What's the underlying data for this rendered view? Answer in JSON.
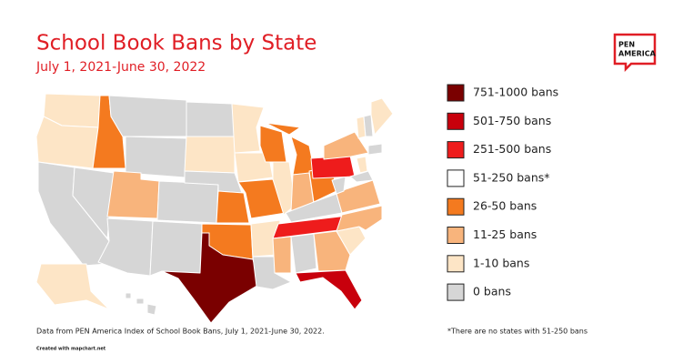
{
  "header": {
    "title": "School Book Bans by State",
    "subtitle": "July 1, 2021-June 30, 2022",
    "logo": [
      "PEN",
      "AMERICA"
    ]
  },
  "legend": [
    {
      "label": "751-1000 bans",
      "color": "#7a0000"
    },
    {
      "label": "501-750 bans",
      "color": "#c8000c"
    },
    {
      "label": "251-500 bans",
      "color": "#ee1c1c"
    },
    {
      "label": "51-250 bans*",
      "color": "#ffffff"
    },
    {
      "label": "26-50 bans",
      "color": "#f47a1f"
    },
    {
      "label": "11-25 bans",
      "color": "#f8b47c"
    },
    {
      "label": "1-10 bans",
      "color": "#fde5c6"
    },
    {
      "label": "0 bans",
      "color": "#d6d6d6"
    }
  ],
  "footnotes": {
    "source": "Data from PEN America Index of School Book Bans, July 1, 2021-June 30, 2022.",
    "credit": "Created with mapchart.net",
    "note": "*There are no states with 51-250 bans"
  }
}
